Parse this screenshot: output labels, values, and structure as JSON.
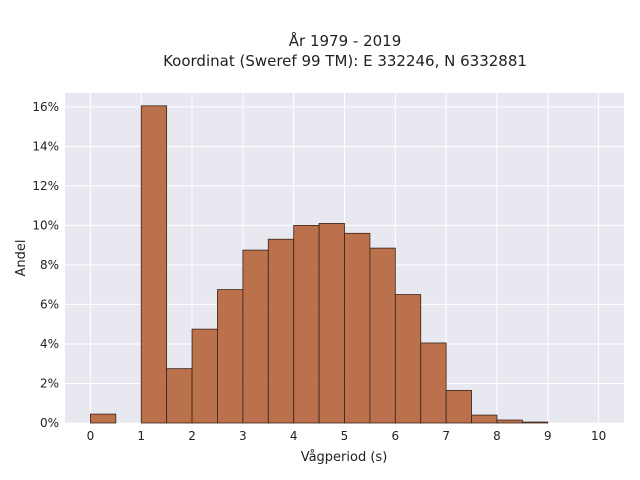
{
  "chart_data": {
    "type": "bar",
    "title_lines": [
      "År 1979 - 2019",
      "Koordinat (Sweref 99 TM): E 332246, N 6332881"
    ],
    "xlabel": "Vågperiod (s)",
    "ylabel": "Andel",
    "bin_width": 0.5,
    "bin_starts": [
      0,
      0.5,
      1,
      1.5,
      2,
      2.5,
      3,
      3.5,
      4,
      4.5,
      5,
      5.5,
      6,
      6.5,
      7,
      7.5,
      8,
      8.5,
      9,
      9.5
    ],
    "values": [
      0.45,
      0,
      16.05,
      2.75,
      4.75,
      6.75,
      8.75,
      9.3,
      10.0,
      10.1,
      9.6,
      8.85,
      6.5,
      4.05,
      1.65,
      0.4,
      0.15,
      0.05,
      0,
      0
    ],
    "xlim": [
      -0.5,
      10.5
    ],
    "ylim": [
      0,
      16.7
    ],
    "x_ticks": [
      0,
      1,
      2,
      3,
      4,
      5,
      6,
      7,
      8,
      9,
      10
    ],
    "y_ticks": [
      0,
      2,
      4,
      6,
      8,
      10,
      12,
      14,
      16
    ],
    "y_tick_labels": [
      "0%",
      "2%",
      "4%",
      "6%",
      "8%",
      "10%",
      "12%",
      "14%",
      "16%"
    ],
    "grid": true,
    "bar_color": "#b5643a",
    "bar_edge_color": "#3a2418",
    "background_color": "#e8e8f0"
  }
}
